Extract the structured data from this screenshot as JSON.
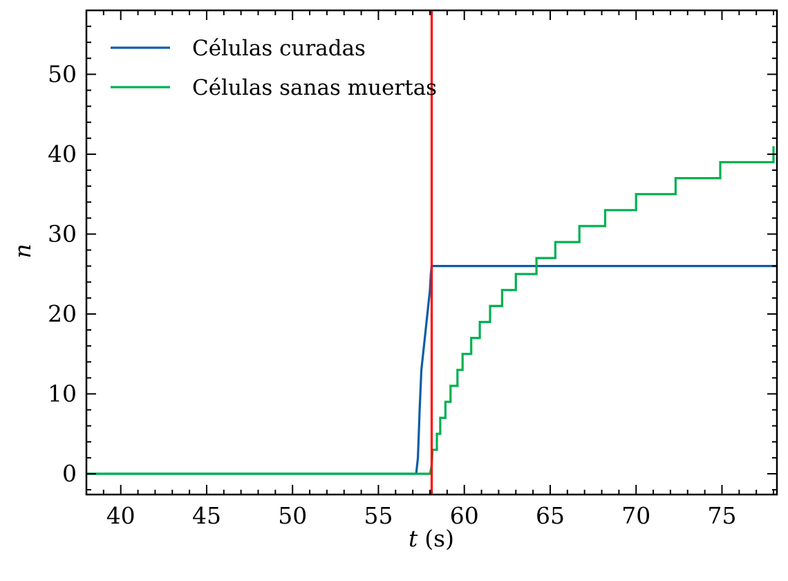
{
  "chart_data": {
    "type": "line",
    "title": "",
    "xlabel_var": "t",
    "xlabel_unit": "(s)",
    "ylabel": "n",
    "xlim": [
      38,
      78.2
    ],
    "ylim": [
      -2.6,
      58
    ],
    "xticks": [
      40,
      45,
      50,
      55,
      60,
      65,
      70,
      75
    ],
    "yticks": [
      0,
      10,
      20,
      30,
      40,
      50
    ],
    "grid": false,
    "legend_position": "top-left",
    "vline": {
      "x": 58.1,
      "color": "#ff0000"
    },
    "series": [
      {
        "name": "Células curadas",
        "color": "#0c5da5",
        "points": [
          [
            38,
            0
          ],
          [
            57.2,
            0
          ],
          [
            57.3,
            2
          ],
          [
            57.4,
            8
          ],
          [
            57.5,
            13
          ],
          [
            57.7,
            17
          ],
          [
            57.9,
            21
          ],
          [
            58.0,
            23
          ],
          [
            58.05,
            25
          ],
          [
            58.1,
            26
          ],
          [
            78.2,
            26
          ]
        ]
      },
      {
        "name": "Células sanas muertas",
        "color": "#00b050",
        "points": [
          [
            38,
            0
          ],
          [
            58.0,
            0
          ],
          [
            58.1,
            1
          ],
          [
            58.15,
            3
          ],
          [
            58.4,
            3
          ],
          [
            58.4,
            5
          ],
          [
            58.6,
            5
          ],
          [
            58.6,
            7
          ],
          [
            58.9,
            7
          ],
          [
            58.9,
            9
          ],
          [
            59.2,
            9
          ],
          [
            59.2,
            11
          ],
          [
            59.6,
            11
          ],
          [
            59.6,
            13
          ],
          [
            59.9,
            13
          ],
          [
            59.9,
            15
          ],
          [
            60.4,
            15
          ],
          [
            60.4,
            17
          ],
          [
            60.9,
            17
          ],
          [
            60.9,
            19
          ],
          [
            61.5,
            19
          ],
          [
            61.5,
            21
          ],
          [
            62.2,
            21
          ],
          [
            62.2,
            23
          ],
          [
            63.0,
            23
          ],
          [
            63.0,
            25
          ],
          [
            64.2,
            25
          ],
          [
            64.2,
            27
          ],
          [
            65.3,
            27
          ],
          [
            65.3,
            29
          ],
          [
            66.7,
            29
          ],
          [
            66.7,
            31
          ],
          [
            68.2,
            31
          ],
          [
            68.2,
            33
          ],
          [
            70.0,
            33
          ],
          [
            70.0,
            35
          ],
          [
            72.3,
            35
          ],
          [
            72.3,
            37
          ],
          [
            74.9,
            37
          ],
          [
            74.9,
            39
          ],
          [
            78.0,
            39
          ],
          [
            78.0,
            41
          ]
        ]
      }
    ]
  }
}
